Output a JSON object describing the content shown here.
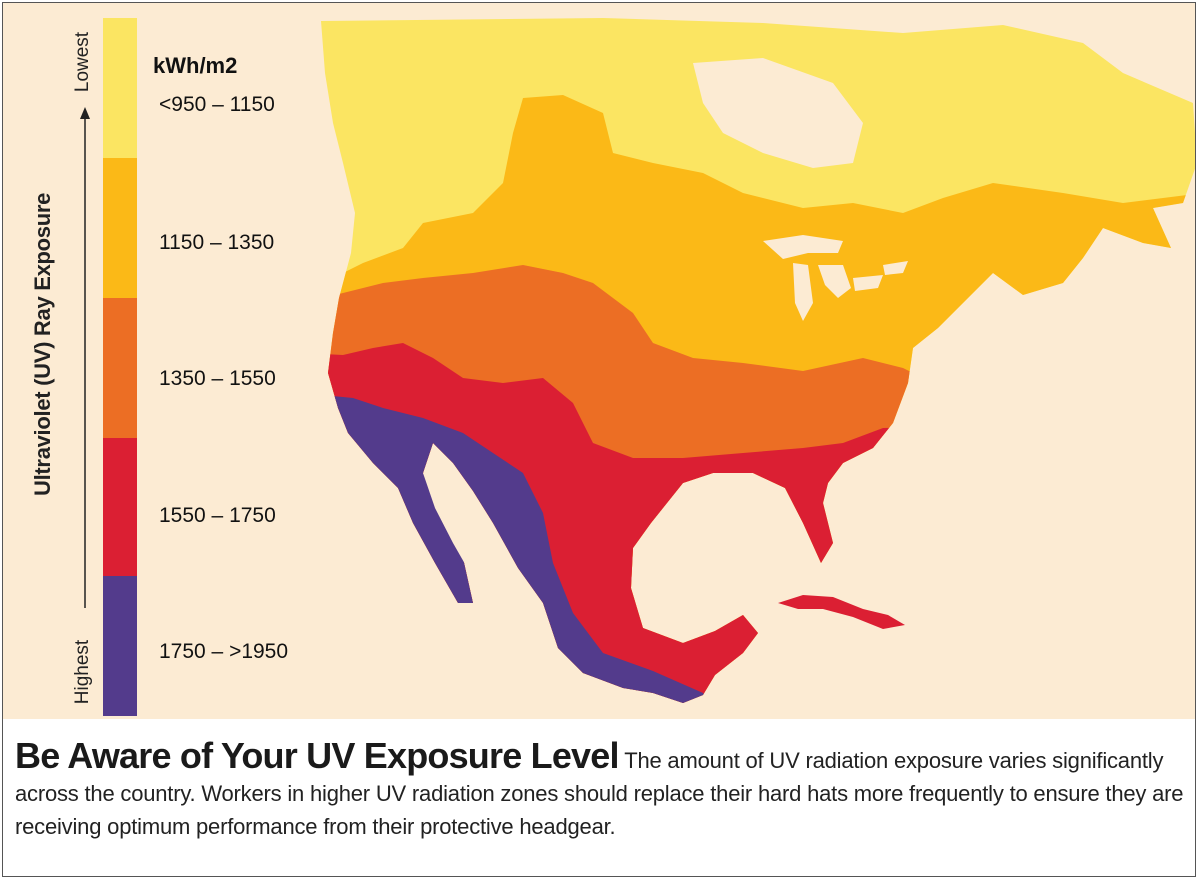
{
  "legend": {
    "axis_title": "Ultraviolet (UV) Ray Exposure",
    "lowest_label": "Lowest",
    "highest_label": "Highest",
    "unit": "kWh/m2",
    "ranges": [
      {
        "label": "<950 – 1150",
        "color": "#fbe562"
      },
      {
        "label": "1150 – 1350",
        "color": "#fbb917"
      },
      {
        "label": "1350 – 1550",
        "color": "#ec6e24"
      },
      {
        "label": "1550 – 1750",
        "color": "#db1f33"
      },
      {
        "label": "1750 – >1950",
        "color": "#533b8c"
      }
    ]
  },
  "map": {
    "background_color": "#fcebd3",
    "water_color": "#fcebd3"
  },
  "caption": {
    "headline": "Be Aware of Your UV Exposure Level",
    "body": "The amount of UV radiation exposure varies significantly across the country. Workers in higher UV radiation zones should replace their hard hats more frequently to ensure they are receiving optimum performance from their protective headgear."
  }
}
